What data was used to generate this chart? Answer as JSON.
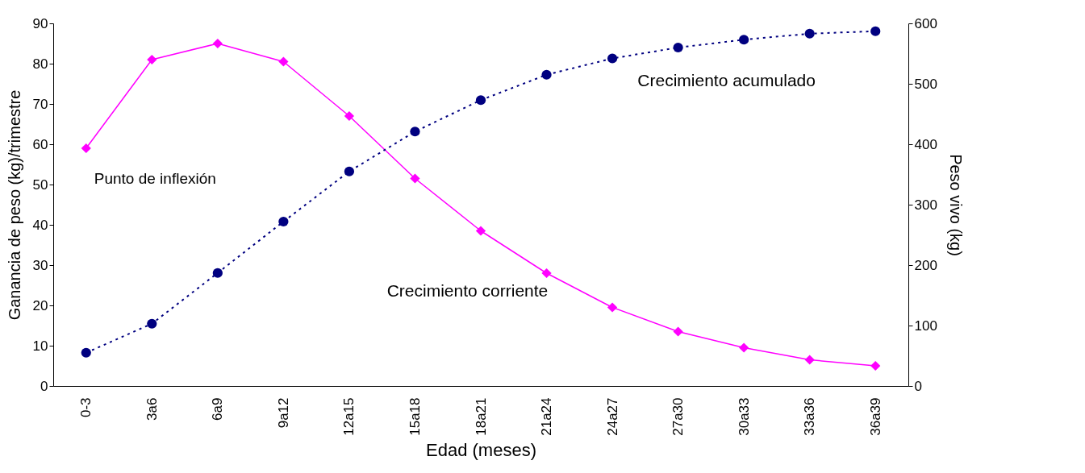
{
  "chart_data": {
    "type": "line",
    "xlabel": "Edad (meses)",
    "ylabel": "Ganancia de peso (kg)/trimestre",
    "y2label": "Peso vivo (kg)",
    "categories": [
      "0-3",
      "3a6",
      "6a9",
      "9a12",
      "12a15",
      "15a18",
      "18a21",
      "21a24",
      "24a27",
      "27a30",
      "30a33",
      "33a36",
      "36a39"
    ],
    "series": [
      {
        "name": "Crecimiento corriente",
        "color": "#ff00ff",
        "marker": "diamond",
        "line_style": "solid",
        "values": [
          59,
          81,
          85,
          80.5,
          67,
          51.5,
          38.5,
          28,
          19.5,
          13.5,
          9.5,
          6.5,
          5
        ]
      },
      {
        "name": "Crecimiento acumulado",
        "color": "#000080",
        "marker": "circle",
        "line_style": "dotted",
        "axis": "y2",
        "values": [
          55,
          103,
          187,
          272,
          355,
          421,
          473,
          515,
          542,
          560,
          573,
          583,
          587
        ]
      }
    ],
    "ylim": [
      0,
      90
    ],
    "yticks": [
      0,
      10,
      20,
      30,
      40,
      50,
      60,
      70,
      80,
      90
    ],
    "y2lim": [
      0,
      600
    ],
    "y2ticks": [
      0,
      100,
      200,
      300,
      400,
      500,
      600
    ],
    "annotations": [
      "Punto de inflexión"
    ],
    "grid": false
  }
}
